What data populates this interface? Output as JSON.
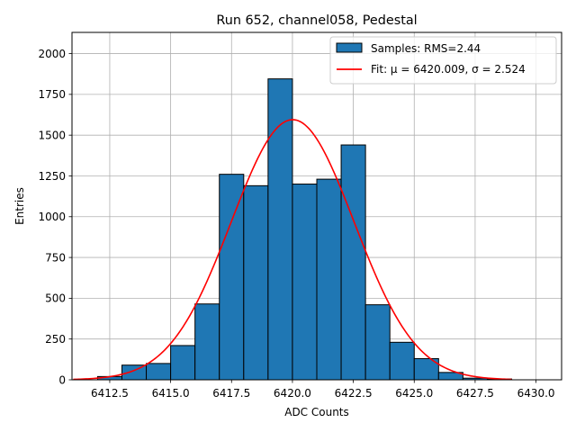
{
  "chart_data": {
    "type": "bar",
    "title": "Run 652, channel058, Pedestal",
    "xlabel": "ADC Counts",
    "ylabel": "Entries",
    "xlim": [
      6410.95,
      6431.05
    ],
    "ylim": [
      0,
      2130
    ],
    "grid": true,
    "legend_position": "top-right",
    "xticks": [
      6412.5,
      6415.0,
      6417.5,
      6420.0,
      6422.5,
      6425.0,
      6427.5,
      6430.0
    ],
    "xtick_labels": [
      "6412.5",
      "6415.0",
      "6417.5",
      "6420.0",
      "6422.5",
      "6425.0",
      "6427.5",
      "6430.0"
    ],
    "yticks": [
      0,
      250,
      500,
      750,
      1000,
      1250,
      1500,
      1750,
      2000
    ],
    "ytick_labels": [
      "0",
      "250",
      "500",
      "750",
      "1000",
      "1250",
      "1500",
      "1750",
      "2000"
    ],
    "bin_width": 1,
    "series": [
      {
        "name": "Samples: RMS=2.44",
        "kind": "histogram",
        "color": "#1f77b4",
        "edge_color": "#000000",
        "bin_left_edges": [
          6412,
          6413,
          6414,
          6415,
          6416,
          6417,
          6418,
          6419,
          6420,
          6421,
          6422,
          6423,
          6424,
          6425,
          6426,
          6427,
          6428
        ],
        "values": [
          20,
          90,
          100,
          210,
          465,
          1260,
          1190,
          1845,
          1200,
          1230,
          1440,
          460,
          230,
          130,
          45,
          10,
          5
        ]
      },
      {
        "name": "Fit: μ = 6420.009, σ = 2.524",
        "kind": "gaussian-fit",
        "color": "#ff0000",
        "mu": 6420.009,
        "sigma": 2.524,
        "amplitude": 1595,
        "x_range": [
          6411.0,
          6429.0
        ]
      }
    ]
  }
}
